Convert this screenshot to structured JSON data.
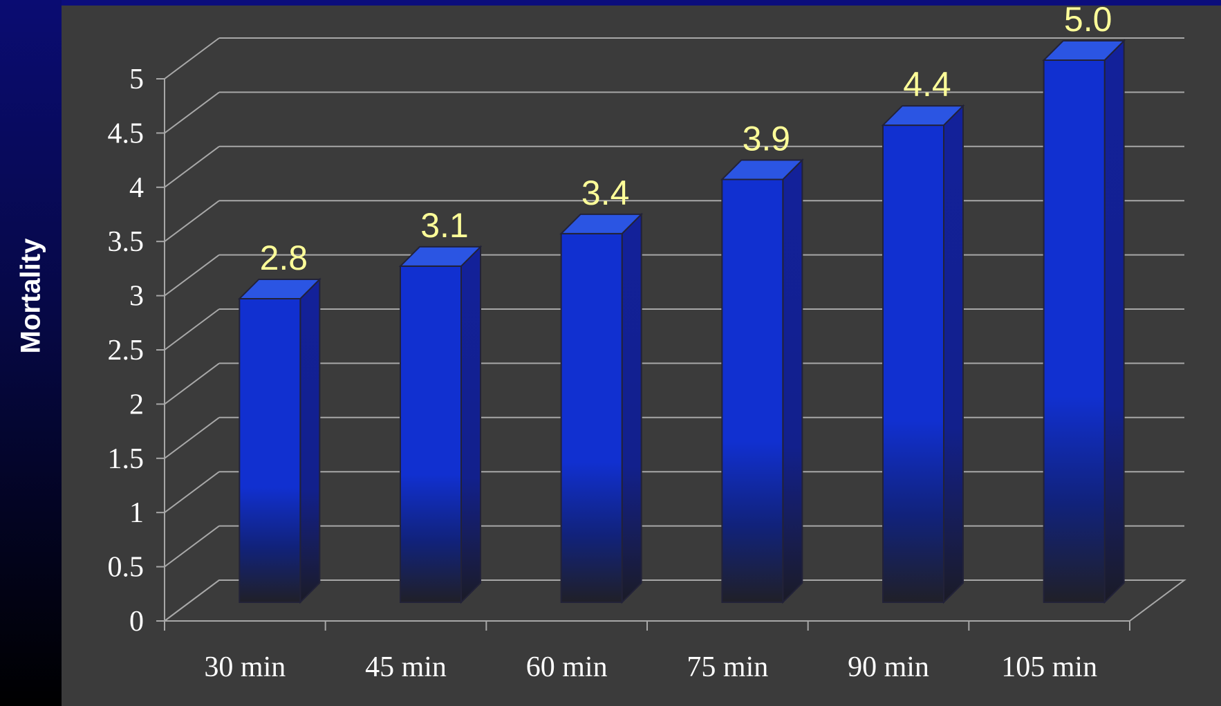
{
  "chart_data": {
    "type": "bar",
    "ylabel": "Mortality",
    "categories": [
      "30 min",
      "45 min",
      "60 min",
      "75 min",
      "90 min",
      "105 min"
    ],
    "values": [
      2.8,
      3.1,
      3.4,
      3.9,
      4.4,
      5.0
    ],
    "data_labels": [
      "2.8",
      "3.1",
      "3.4",
      "3.9",
      "4.4",
      "5.0"
    ],
    "yticks": [
      "0",
      "0.5",
      "1",
      "1.5",
      "2",
      "2.5",
      "3",
      "3.5",
      "4",
      "4.5",
      "5"
    ],
    "ylim": [
      0,
      5
    ],
    "grid": true,
    "style": "3d",
    "bar_color": "#1130d0",
    "label_color": "#ffff99"
  }
}
